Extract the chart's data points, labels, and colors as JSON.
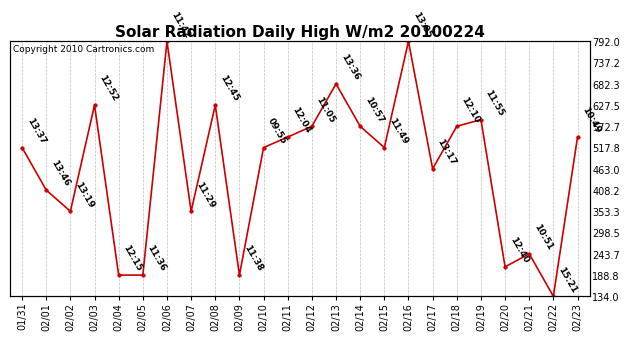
{
  "title": "Solar Radiation Daily High W/m2 20100224",
  "copyright": "Copyright 2010 Cartronics.com",
  "dates": [
    "01/31",
    "02/01",
    "02/02",
    "02/03",
    "02/04",
    "02/05",
    "02/06",
    "02/07",
    "02/08",
    "02/09",
    "02/10",
    "02/11",
    "02/12",
    "02/13",
    "02/14",
    "02/15",
    "02/16",
    "02/17",
    "02/18",
    "02/19",
    "02/20",
    "02/21",
    "02/22",
    "02/23"
  ],
  "values": [
    517.8,
    408.2,
    353.3,
    627.5,
    188.8,
    188.8,
    792.0,
    353.3,
    627.5,
    188.8,
    517.8,
    545.0,
    572.7,
    682.3,
    572.7,
    517.8,
    792.0,
    463.0,
    572.7,
    590.0,
    210.0,
    243.7,
    134.0,
    545.0
  ],
  "labels": [
    "13:37",
    "13:46",
    "13:19",
    "12:52",
    "12:15",
    "11:36",
    "11:42",
    "11:29",
    "12:45",
    "11:38",
    "09:55",
    "12:04",
    "11:05",
    "13:36",
    "10:57",
    "11:49",
    "13:05",
    "13:17",
    "12:10",
    "11:55",
    "12:40",
    "10:51",
    "15:21",
    "10:49"
  ],
  "ylim": [
    134.0,
    792.0
  ],
  "yticks": [
    134.0,
    188.8,
    243.7,
    298.5,
    353.3,
    408.2,
    463.0,
    517.8,
    572.7,
    627.5,
    682.3,
    737.2,
    792.0
  ],
  "line_color": "#cc0000",
  "marker_color": "#cc0000",
  "bg_color": "#ffffff",
  "grid_color": "#c0c0c0",
  "title_fontsize": 11,
  "label_fontsize": 6.5,
  "copyright_fontsize": 6.5,
  "tick_fontsize": 7
}
